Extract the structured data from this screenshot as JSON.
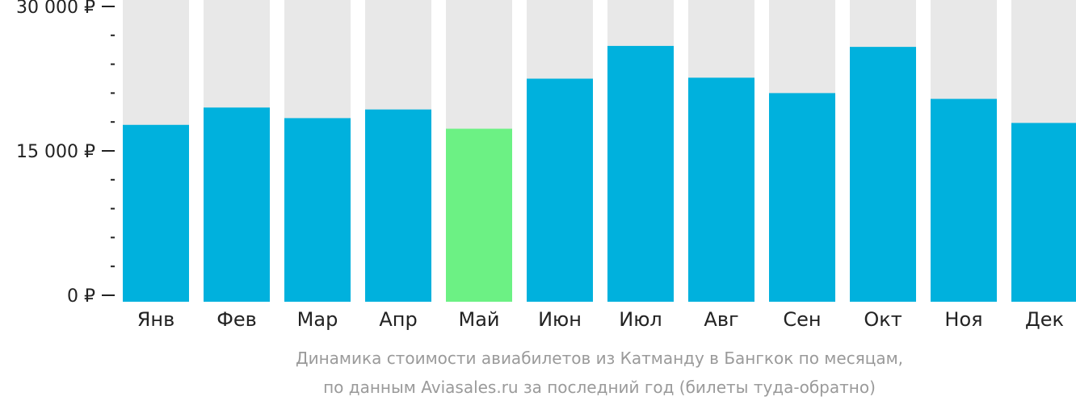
{
  "chart_data": {
    "type": "bar",
    "categories": [
      "Янв",
      "Фев",
      "Мар",
      "Апр",
      "Май",
      "Июн",
      "Июл",
      "Авг",
      "Сен",
      "Окт",
      "Ноя",
      "Дек"
    ],
    "values": [
      17700,
      19500,
      18400,
      19300,
      17300,
      22500,
      25900,
      22600,
      21000,
      25800,
      20400,
      17900
    ],
    "ylim": [
      0,
      30000
    ],
    "yticks": [
      {
        "value": 0,
        "label": "0 ₽"
      },
      {
        "value": 15000,
        "label": "15 000 ₽"
      },
      {
        "value": 30000,
        "label": "30 000 ₽"
      }
    ],
    "minor_tick_step": 3000,
    "highlight_index": 4,
    "colors": {
      "bar": "#00b1dd",
      "highlight": "#6cf184",
      "background_bar": "#e8e8e8",
      "axis": "#222222",
      "caption": "#9a9a9a"
    },
    "caption_lines": [
      "Динамика стоимости авиабилетов из Катманду в Бангкок по месяцам,",
      "по данным Aviasales.ru за последний год (билеты туда-обратно)"
    ]
  }
}
